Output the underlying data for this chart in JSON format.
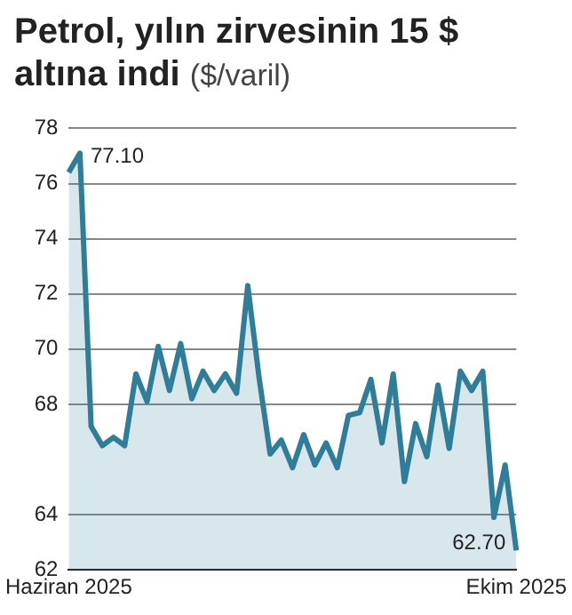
{
  "chart_data": {
    "type": "area",
    "title": "Petrol, yılın zirvesinin 15 $ altına indi",
    "subtitle": "($/varil)",
    "categories": [
      "Haziran 2025",
      null,
      null,
      null,
      null,
      null,
      null,
      null,
      null,
      null,
      null,
      null,
      null,
      null,
      null,
      null,
      null,
      null,
      null,
      null,
      null,
      null,
      null,
      null,
      null,
      null,
      null,
      null,
      null,
      null,
      null,
      null,
      null,
      null,
      null,
      null,
      null,
      null,
      null,
      null,
      "Ekim 2025"
    ],
    "series": [
      {
        "color": "#2f7d99",
        "values": [
          76.4,
          77.1,
          67.2,
          66.5,
          66.8,
          66.5,
          69.1,
          68.1,
          70.1,
          68.5,
          70.2,
          68.2,
          69.2,
          68.5,
          69.1,
          68.4,
          72.3,
          69.0,
          66.2,
          66.7,
          65.7,
          66.9,
          65.8,
          66.6,
          65.7,
          67.6,
          67.7,
          68.9,
          66.6,
          69.1,
          65.2,
          67.3,
          66.1,
          68.7,
          66.4,
          69.2,
          68.5,
          69.2,
          63.9,
          65.8,
          62.7
        ]
      }
    ],
    "ylim": [
      62,
      78
    ],
    "yticks": [
      62,
      64,
      68,
      70,
      72,
      74,
      76,
      78
    ],
    "grid": "y",
    "legend": false,
    "annotations": [
      "77.10",
      "62.70"
    ]
  }
}
